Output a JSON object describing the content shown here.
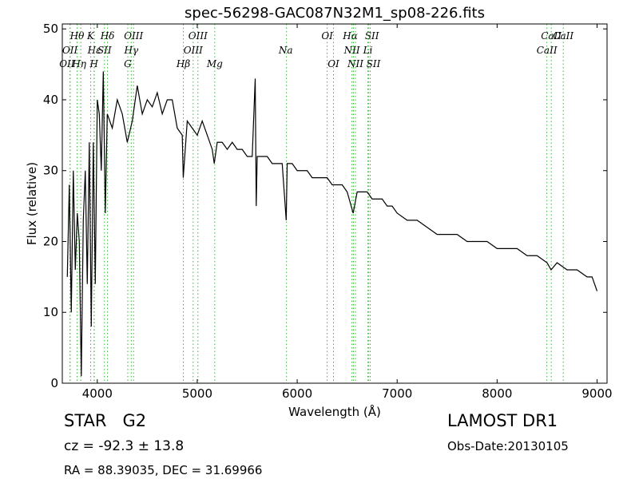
{
  "chart_data": {
    "type": "line",
    "title": "spec-56298-GAC087N32M1_sp08-226.fits",
    "x_label": "Wavelength (Å)",
    "y_label": "Flux (relative)",
    "xlim": [
      3650,
      9100
    ],
    "ylim": [
      0,
      50.7
    ],
    "xticks": [
      4000,
      5000,
      6000,
      7000,
      8000,
      9000
    ],
    "yticks": [
      0,
      10,
      20,
      30,
      40,
      50
    ],
    "x": [
      3700,
      3720,
      3740,
      3760,
      3780,
      3800,
      3820,
      3840,
      3860,
      3880,
      3900,
      3920,
      3940,
      3960,
      3980,
      4000,
      4020,
      4040,
      4060,
      4080,
      4100,
      4150,
      4200,
      4250,
      4300,
      4350,
      4400,
      4450,
      4500,
      4550,
      4600,
      4650,
      4700,
      4750,
      4800,
      4850,
      4860,
      4900,
      4950,
      5000,
      5050,
      5100,
      5150,
      5170,
      5200,
      5250,
      5300,
      5350,
      5400,
      5450,
      5500,
      5550,
      5580,
      5590,
      5600,
      5650,
      5700,
      5750,
      5800,
      5850,
      5890,
      5900,
      5950,
      6000,
      6050,
      6100,
      6150,
      6200,
      6250,
      6300,
      6350,
      6400,
      6450,
      6500,
      6560,
      6600,
      6650,
      6700,
      6750,
      6800,
      6850,
      6900,
      6950,
      7000,
      7100,
      7200,
      7300,
      7400,
      7500,
      7600,
      7700,
      7800,
      7900,
      8000,
      8100,
      8200,
      8300,
      8400,
      8500,
      8540,
      8600,
      8700,
      8800,
      8900,
      8950,
      9000
    ],
    "series": [
      {
        "name": "Flux",
        "color": "#000000",
        "values": [
          15,
          28,
          10,
          30,
          16,
          24,
          20,
          1,
          23,
          30,
          14,
          34,
          8,
          34,
          14,
          40,
          38,
          30,
          44,
          24,
          38,
          36,
          40,
          38,
          34,
          37,
          42,
          38,
          40,
          39,
          41,
          38,
          40,
          40,
          36,
          35,
          29,
          37,
          36,
          35,
          37,
          35,
          33,
          31,
          34,
          34,
          33,
          34,
          33,
          33,
          32,
          32,
          43,
          25,
          32,
          32,
          32,
          31,
          31,
          31,
          23,
          31,
          31,
          30,
          30,
          30,
          29,
          29,
          29,
          29,
          28,
          28,
          28,
          27,
          24,
          27,
          27,
          27,
          26,
          26,
          26,
          25,
          25,
          24,
          23,
          23,
          22,
          21,
          21,
          21,
          20,
          20,
          20,
          19,
          19,
          19,
          18,
          18,
          17,
          16,
          17,
          16,
          16,
          15,
          15,
          13
        ]
      }
    ],
    "line_marks": {
      "color": "#33bb33",
      "lines": [
        {
          "label": "Hθ",
          "x": 3798
        },
        {
          "label": "K",
          "x": 3934
        },
        {
          "label": "Hδ",
          "x": 4102
        },
        {
          "label": "OIII",
          "x": 4363
        },
        {
          "label": "OIII",
          "x": 5007
        },
        {
          "label": "OI",
          "x": 6300
        },
        {
          "label": "Hα",
          "x": 6563
        },
        {
          "label": "SII",
          "x": 6716
        },
        {
          "label": "CaII",
          "x": 8542
        },
        {
          "label": "OII",
          "x": 3727
        },
        {
          "label": "Hε",
          "x": 3970
        },
        {
          "label": "SII",
          "x": 4072
        },
        {
          "label": "Hγ",
          "x": 4340
        },
        {
          "label": "OIII",
          "x": 4959
        },
        {
          "label": "Na",
          "x": 5893
        },
        {
          "label": "NII",
          "x": 6548
        },
        {
          "label": "Li",
          "x": 6707
        },
        {
          "label": "CaII",
          "x": 8498
        },
        {
          "label": "OII",
          "x": 3729
        },
        {
          "label": "Hη",
          "x": 3835
        },
        {
          "label": "H",
          "x": 3968
        },
        {
          "label": "G",
          "x": 4305
        },
        {
          "label": "Hβ",
          "x": 4861
        },
        {
          "label": "Mg",
          "x": 5175
        },
        {
          "label": "OI",
          "x": 6363
        },
        {
          "label": "NII",
          "x": 6583
        },
        {
          "label": "SII",
          "x": 6731
        },
        {
          "label": "CaII",
          "x": 8662
        }
      ]
    },
    "annotations": [
      "STAR   G2",
      "cz = -92.3 ± 13.8",
      "RA = 88.39035, DEC = 31.69966",
      "LAMOST DR1",
      "Obs-Date:20130105"
    ]
  }
}
